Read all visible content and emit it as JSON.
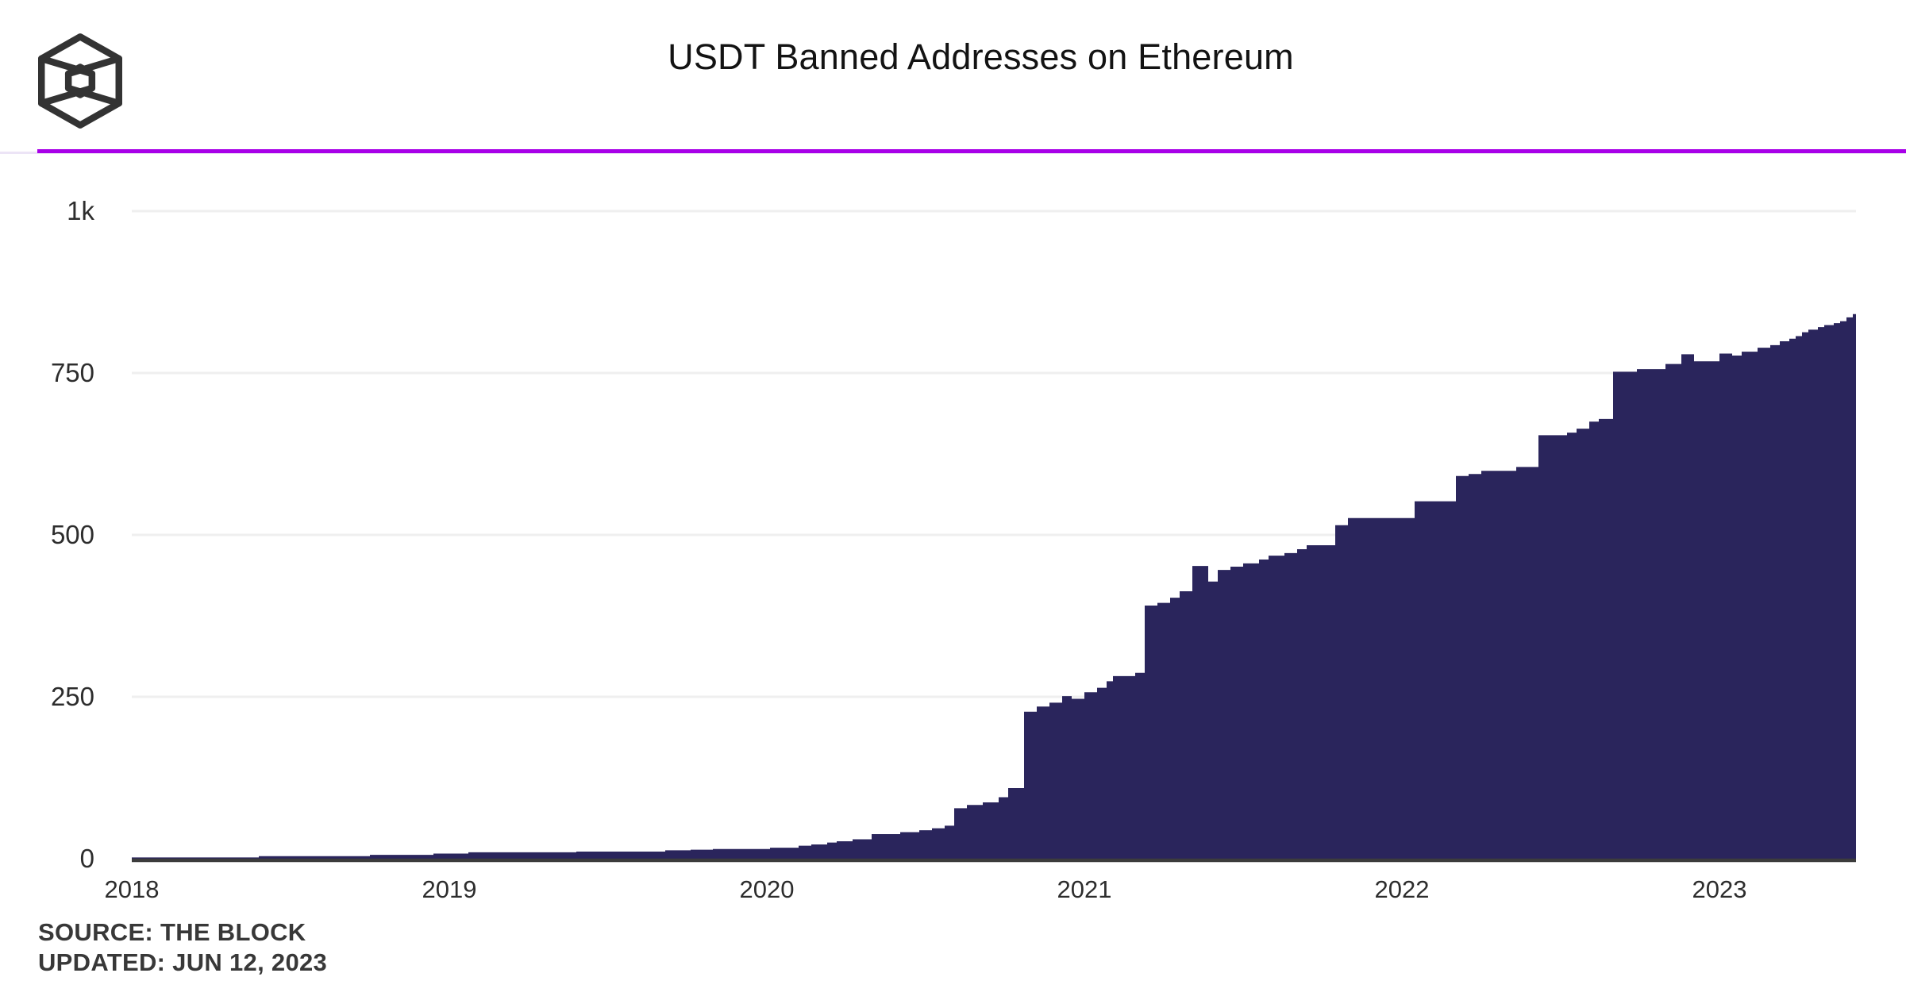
{
  "header": {
    "title": "USDT Banned Addresses on Ethereum",
    "logo_name": "the-block-logo"
  },
  "footer": {
    "source_line": "SOURCE: THE BLOCK",
    "updated_line": "UPDATED: JUN 12, 2023"
  },
  "colors": {
    "area_fill": "#2a255c",
    "divider_purple": "#a800e8",
    "divider_light": "#ece4f6",
    "gridline": "#efefef",
    "axis_line": "#3c3c3c",
    "tick_text": "#2d2d2d",
    "title_text": "#131313",
    "source_text": "#383838",
    "background": "#ffffff",
    "logo_stroke": "#333333"
  },
  "chart_data": {
    "type": "area",
    "subtype": "step-after",
    "title": "USDT Banned Addresses on Ethereum",
    "xlabel": "",
    "ylabel": "",
    "legend": "none",
    "grid": "horizontal",
    "x_axis": {
      "ticks": [
        2018,
        2019,
        2020,
        2021,
        2022,
        2023
      ],
      "range": [
        2018.0,
        2023.43
      ]
    },
    "y_axis": {
      "tick_labels": [
        "0",
        "250",
        "500",
        "750",
        "1k"
      ],
      "tick_values": [
        0,
        250,
        500,
        750,
        1000
      ],
      "range": [
        0,
        1000
      ]
    },
    "series": [
      {
        "name": "USDT Banned Addresses",
        "points": [
          [
            2018.0,
            2
          ],
          [
            2018.4,
            4
          ],
          [
            2018.75,
            6
          ],
          [
            2018.95,
            8
          ],
          [
            2019.06,
            10
          ],
          [
            2019.4,
            11
          ],
          [
            2019.68,
            13
          ],
          [
            2019.76,
            14
          ],
          [
            2019.83,
            15
          ],
          [
            2020.01,
            17
          ],
          [
            2020.1,
            20
          ],
          [
            2020.14,
            22
          ],
          [
            2020.19,
            25
          ],
          [
            2020.22,
            27
          ],
          [
            2020.27,
            30
          ],
          [
            2020.33,
            38
          ],
          [
            2020.42,
            41
          ],
          [
            2020.48,
            44
          ],
          [
            2020.52,
            47
          ],
          [
            2020.56,
            51
          ],
          [
            2020.59,
            78
          ],
          [
            2020.63,
            83
          ],
          [
            2020.68,
            87
          ],
          [
            2020.73,
            95
          ],
          [
            2020.76,
            109
          ],
          [
            2020.81,
            227
          ],
          [
            2020.85,
            235
          ],
          [
            2020.89,
            241
          ],
          [
            2020.93,
            251
          ],
          [
            2020.96,
            247
          ],
          [
            2021.0,
            257
          ],
          [
            2021.04,
            264
          ],
          [
            2021.07,
            274
          ],
          [
            2021.09,
            282
          ],
          [
            2021.16,
            287
          ],
          [
            2021.19,
            391
          ],
          [
            2021.23,
            395
          ],
          [
            2021.27,
            403
          ],
          [
            2021.3,
            413
          ],
          [
            2021.34,
            452
          ],
          [
            2021.39,
            428
          ],
          [
            2021.42,
            446
          ],
          [
            2021.46,
            451
          ],
          [
            2021.5,
            456
          ],
          [
            2021.55,
            462
          ],
          [
            2021.58,
            468
          ],
          [
            2021.63,
            472
          ],
          [
            2021.67,
            478
          ],
          [
            2021.7,
            484
          ],
          [
            2021.79,
            515
          ],
          [
            2021.83,
            526
          ],
          [
            2022.04,
            552
          ],
          [
            2022.17,
            591
          ],
          [
            2022.21,
            594
          ],
          [
            2022.25,
            599
          ],
          [
            2022.36,
            605
          ],
          [
            2022.43,
            654
          ],
          [
            2022.52,
            658
          ],
          [
            2022.55,
            664
          ],
          [
            2022.59,
            675
          ],
          [
            2022.62,
            679
          ],
          [
            2022.665,
            752
          ],
          [
            2022.74,
            756
          ],
          [
            2022.83,
            764
          ],
          [
            2022.88,
            779
          ],
          [
            2022.92,
            768
          ],
          [
            2023.0,
            780
          ],
          [
            2023.04,
            777
          ],
          [
            2023.07,
            783
          ],
          [
            2023.12,
            789
          ],
          [
            2023.16,
            793
          ],
          [
            2023.19,
            799
          ],
          [
            2023.22,
            803
          ],
          [
            2023.24,
            807
          ],
          [
            2023.26,
            813
          ],
          [
            2023.28,
            817
          ],
          [
            2023.31,
            821
          ],
          [
            2023.33,
            824
          ],
          [
            2023.36,
            827
          ],
          [
            2023.38,
            830
          ],
          [
            2023.4,
            836
          ],
          [
            2023.42,
            841
          ],
          [
            2023.43,
            842
          ]
        ]
      }
    ]
  }
}
